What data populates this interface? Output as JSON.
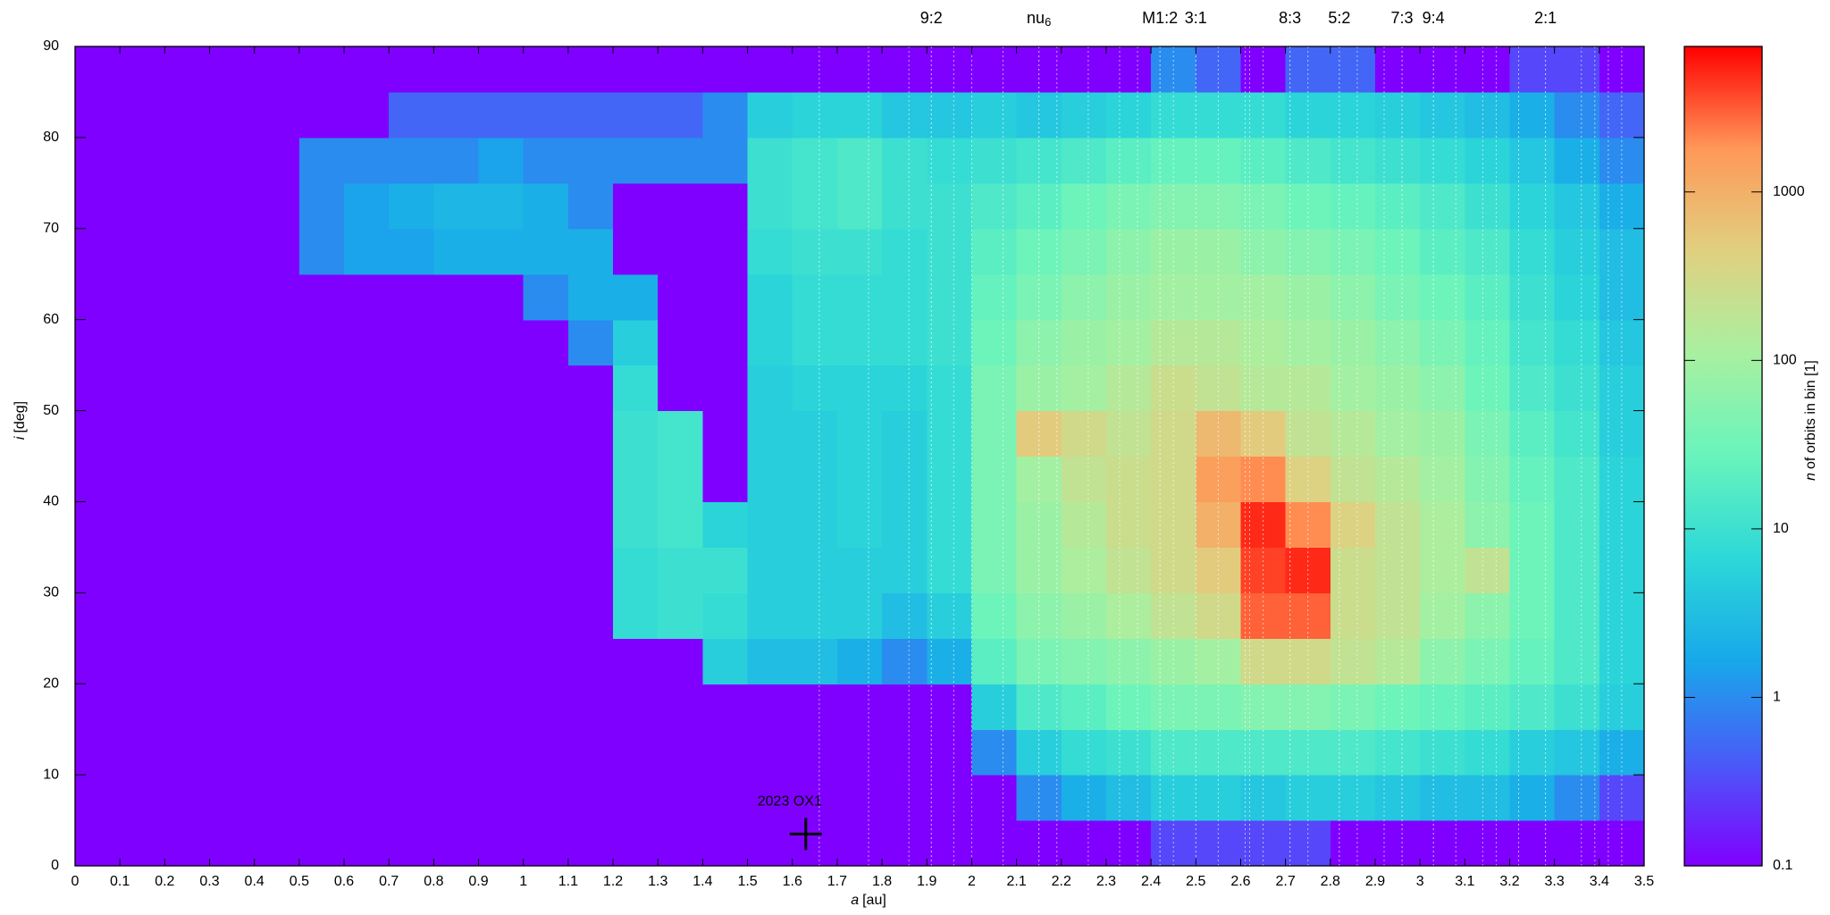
{
  "chart_data": {
    "type": "heatmap",
    "xlabel_symbol": "a",
    "xlabel_unit": "[au]",
    "ylabel_symbol": "i",
    "ylabel_unit": "[deg]",
    "colorbar_symbol": "n",
    "colorbar_label": "of orbits in bin [1]",
    "xlim": [
      0,
      3.5
    ],
    "ylim": [
      0,
      90
    ],
    "xticks": [
      0,
      0.1,
      0.2,
      0.3,
      0.4,
      0.5,
      0.6,
      0.7,
      0.8,
      0.9,
      1,
      1.1,
      1.2,
      1.3,
      1.4,
      1.5,
      1.6,
      1.7,
      1.8,
      1.9,
      2,
      2.1,
      2.2,
      2.3,
      2.4,
      2.5,
      2.6,
      2.7,
      2.8,
      2.9,
      3,
      3.1,
      3.2,
      3.3,
      3.4,
      3.5
    ],
    "yticks": [
      0,
      10,
      20,
      30,
      40,
      50,
      60,
      70,
      80,
      90
    ],
    "clim": [
      0.1,
      7300
    ],
    "clog": true,
    "cticks": [
      0.1,
      1,
      10,
      100,
      1000
    ],
    "colormap": [
      "#8000ff",
      "#4a5af8",
      "#18a8ea",
      "#2cd8d8",
      "#68f4bc",
      "#a8f0a0",
      "#e0d080",
      "#ff9858",
      "#ff0000"
    ],
    "x_edges": [
      0,
      0.1,
      0.2,
      0.3,
      0.4,
      0.5,
      0.6,
      0.7,
      0.8,
      0.9,
      1,
      1.1,
      1.2,
      1.3,
      1.4,
      1.5,
      1.6,
      1.7,
      1.8,
      1.9,
      2,
      2.1,
      2.2,
      2.3,
      2.4,
      2.5,
      2.6,
      2.7,
      2.8,
      2.9,
      3,
      3.1,
      3.2,
      3.3,
      3.4,
      3.5
    ],
    "y_edges": [
      0,
      5,
      10,
      15,
      20,
      25,
      30,
      35,
      40,
      45,
      50,
      55,
      60,
      65,
      70,
      75,
      80,
      85,
      90
    ],
    "z": [
      [
        0.1,
        0.1,
        0.1,
        0.1,
        0.1,
        0.1,
        0.1,
        0.1,
        0.1,
        0.1,
        0.1,
        0.1,
        0.1,
        0.1,
        0.1,
        0.1,
        0.1,
        0.1,
        0.1,
        0.1,
        0.1,
        0.1,
        0.1,
        0.1,
        0.3,
        0.3,
        0.3,
        0.3,
        0.1,
        0.1,
        0.1,
        0.1,
        0.1,
        0.1,
        0.1
      ],
      [
        0.1,
        0.1,
        0.1,
        0.1,
        0.1,
        0.1,
        0.1,
        0.1,
        0.1,
        0.1,
        0.1,
        0.1,
        0.1,
        0.1,
        0.1,
        0.1,
        0.1,
        0.1,
        0.1,
        0.1,
        0.1,
        1,
        2,
        3,
        5,
        5,
        4,
        5,
        5,
        4,
        3,
        3,
        2,
        1,
        0.3
      ],
      [
        0.1,
        0.1,
        0.1,
        0.1,
        0.1,
        0.1,
        0.1,
        0.1,
        0.1,
        0.1,
        0.1,
        0.1,
        0.1,
        0.1,
        0.1,
        0.1,
        0.1,
        0.1,
        0.1,
        0.1,
        1,
        5,
        8,
        10,
        15,
        15,
        15,
        15,
        15,
        12,
        10,
        8,
        5,
        4,
        2
      ],
      [
        0.1,
        0.1,
        0.1,
        0.1,
        0.1,
        0.1,
        0.1,
        0.1,
        0.1,
        0.1,
        0.1,
        0.1,
        0.1,
        0.1,
        0.1,
        0.1,
        0.1,
        0.1,
        0.1,
        0.1,
        5,
        15,
        20,
        30,
        40,
        40,
        50,
        50,
        40,
        30,
        25,
        20,
        15,
        10,
        5
      ],
      [
        0.1,
        0.1,
        0.1,
        0.1,
        0.1,
        0.1,
        0.1,
        0.1,
        0.1,
        0.1,
        0.1,
        0.1,
        0.1,
        0.1,
        5,
        3,
        3,
        2,
        1,
        2,
        20,
        40,
        50,
        60,
        80,
        100,
        300,
        300,
        200,
        150,
        60,
        40,
        25,
        15,
        6
      ],
      [
        0.1,
        0.1,
        0.1,
        0.1,
        0.1,
        0.1,
        0.1,
        0.1,
        0.1,
        0.1,
        0.1,
        0.1,
        8,
        10,
        8,
        5,
        5,
        5,
        3,
        5,
        30,
        60,
        80,
        120,
        200,
        300,
        3000,
        3000,
        250,
        200,
        100,
        60,
        30,
        15,
        6
      ],
      [
        0.1,
        0.1,
        0.1,
        0.1,
        0.1,
        0.1,
        0.1,
        0.1,
        0.1,
        0.1,
        0.1,
        0.1,
        8,
        10,
        10,
        5,
        5,
        5,
        5,
        8,
        40,
        80,
        120,
        200,
        300,
        500,
        4000,
        5000,
        250,
        200,
        120,
        200,
        30,
        15,
        6
      ],
      [
        0.1,
        0.1,
        0.1,
        0.1,
        0.1,
        0.1,
        0.1,
        0.1,
        0.1,
        0.1,
        0.1,
        0.1,
        10,
        12,
        6,
        5,
        5,
        6,
        5,
        8,
        40,
        80,
        150,
        250,
        300,
        1000,
        5000,
        2000,
        400,
        200,
        120,
        60,
        30,
        15,
        6
      ],
      [
        0.1,
        0.1,
        0.1,
        0.1,
        0.1,
        0.1,
        0.1,
        0.1,
        0.1,
        0.1,
        0.1,
        0.1,
        10,
        12,
        0.1,
        5,
        5,
        6,
        5,
        8,
        40,
        100,
        200,
        250,
        300,
        1500,
        2000,
        400,
        200,
        150,
        100,
        50,
        25,
        15,
        6
      ],
      [
        0.1,
        0.1,
        0.1,
        0.1,
        0.1,
        0.1,
        0.1,
        0.1,
        0.1,
        0.1,
        0.1,
        0.1,
        10,
        12,
        0.1,
        5,
        5,
        6,
        5,
        8,
        40,
        500,
        300,
        200,
        300,
        800,
        500,
        200,
        150,
        100,
        80,
        40,
        20,
        12,
        5
      ],
      [
        0.1,
        0.1,
        0.1,
        0.1,
        0.1,
        0.1,
        0.1,
        0.1,
        0.1,
        0.1,
        0.1,
        0.1,
        8,
        0.1,
        0.1,
        5,
        6,
        6,
        6,
        8,
        40,
        80,
        100,
        150,
        250,
        200,
        150,
        150,
        100,
        80,
        60,
        30,
        15,
        10,
        5
      ],
      [
        0.1,
        0.1,
        0.1,
        0.1,
        0.1,
        0.1,
        0.1,
        0.1,
        0.1,
        0.1,
        0.1,
        1,
        5,
        0.1,
        0.1,
        6,
        8,
        8,
        8,
        10,
        30,
        60,
        80,
        100,
        150,
        150,
        120,
        100,
        80,
        60,
        40,
        25,
        12,
        8,
        4
      ],
      [
        0.1,
        0.1,
        0.1,
        0.1,
        0.1,
        0.1,
        0.1,
        0.1,
        0.1,
        0.1,
        1,
        2,
        2,
        0.1,
        0.1,
        6,
        8,
        8,
        8,
        10,
        25,
        40,
        60,
        80,
        100,
        100,
        100,
        80,
        60,
        40,
        30,
        20,
        10,
        6,
        3
      ],
      [
        0.1,
        0.1,
        0.1,
        0.1,
        0.1,
        1,
        1.5,
        1.5,
        2,
        2,
        2,
        2,
        0.1,
        0.1,
        0.1,
        8,
        10,
        10,
        8,
        10,
        20,
        30,
        40,
        60,
        80,
        80,
        60,
        50,
        40,
        30,
        20,
        15,
        8,
        5,
        3
      ],
      [
        0.1,
        0.1,
        0.1,
        0.1,
        0.1,
        1,
        1.5,
        2,
        2.5,
        2.5,
        2,
        1,
        0.1,
        0.1,
        0.1,
        10,
        12,
        15,
        10,
        10,
        15,
        20,
        30,
        40,
        50,
        50,
        40,
        30,
        25,
        20,
        15,
        10,
        6,
        4,
        2
      ],
      [
        0.1,
        0.1,
        0.1,
        0.1,
        0.1,
        1,
        1,
        1,
        1,
        1.5,
        1,
        1,
        1,
        1,
        1,
        10,
        12,
        15,
        10,
        8,
        10,
        12,
        15,
        20,
        25,
        25,
        20,
        15,
        12,
        10,
        8,
        6,
        4,
        2,
        1
      ],
      [
        0.1,
        0.1,
        0.1,
        0.1,
        0.1,
        0.1,
        0.1,
        0.5,
        0.5,
        0.5,
        0.5,
        0.5,
        0.5,
        0.5,
        1,
        5,
        6,
        6,
        4,
        4,
        5,
        4,
        5,
        6,
        8,
        8,
        8,
        6,
        6,
        5,
        4,
        3,
        2,
        1,
        0.5
      ],
      [
        0.1,
        0.1,
        0.1,
        0.1,
        0.1,
        0.1,
        0.1,
        0.1,
        0.1,
        0.1,
        0.1,
        0.1,
        0.1,
        0.1,
        0.1,
        0.1,
        0.1,
        0.1,
        0.1,
        0.1,
        0.1,
        0.1,
        0.1,
        0.1,
        1,
        0.5,
        0.1,
        0.5,
        0.5,
        0.1,
        0.1,
        0.1,
        0.3,
        0.3,
        0.1
      ]
    ],
    "resonances": [
      {
        "text": "9:2",
        "x": 1.91
      },
      {
        "text": "nu",
        "subscript": "6",
        "x": 2.15
      },
      {
        "text": "M1:2",
        "x": 2.42
      },
      {
        "text": "3:1",
        "x": 2.5
      },
      {
        "text": "8:3",
        "x": 2.71
      },
      {
        "text": "5:2",
        "x": 2.82
      },
      {
        "text": "7:3",
        "x": 2.96
      },
      {
        "text": "9:4",
        "x": 3.03
      },
      {
        "text": "2:1",
        "x": 3.28
      }
    ],
    "resonance_lines": [
      1.66,
      1.77,
      1.86,
      1.96,
      2.0,
      2.07,
      2.19,
      2.26,
      2.33,
      2.37,
      2.45,
      2.55,
      2.61,
      2.62,
      2.65,
      2.75,
      2.86,
      2.92,
      3.08,
      3.14,
      3.17,
      3.22,
      3.36,
      3.39,
      3.42,
      3.45
    ],
    "object": {
      "label": "2023 OX1",
      "a": 1.63,
      "i": 3.5
    }
  }
}
